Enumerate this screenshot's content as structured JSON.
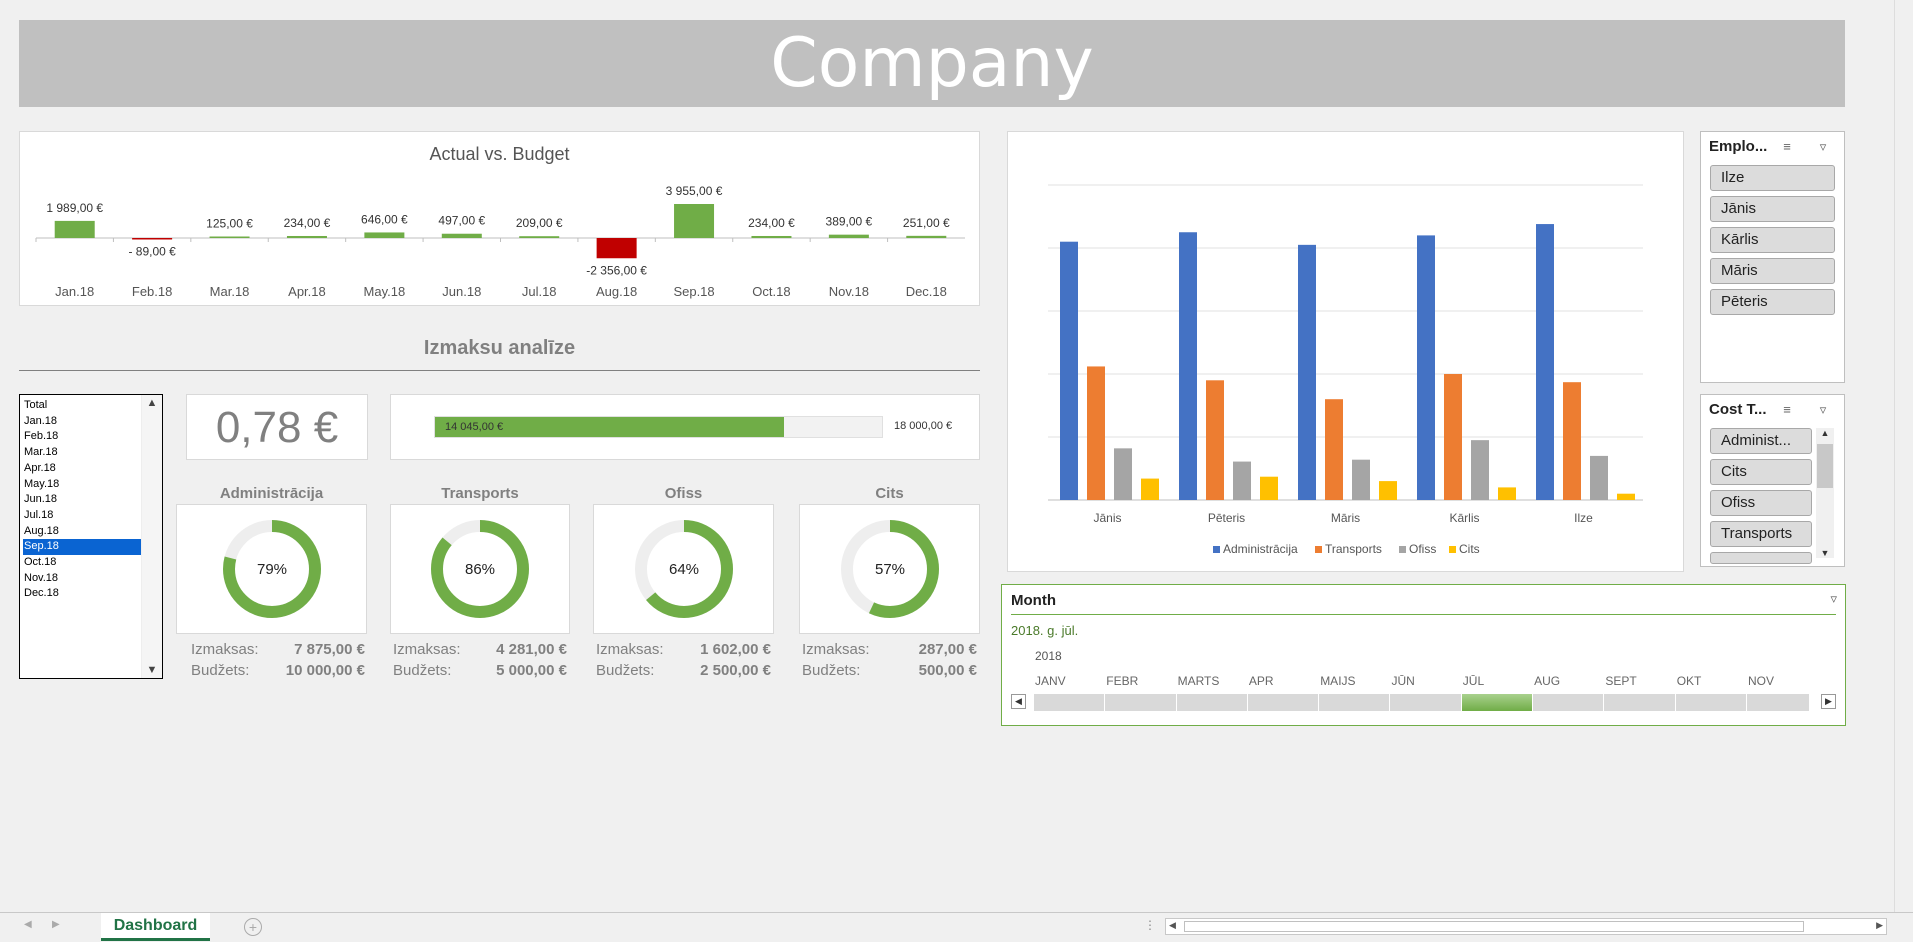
{
  "header": {
    "title": "Company"
  },
  "avb_chart": {
    "title": "Actual vs. Budget",
    "categories": [
      "Jan.18",
      "Feb.18",
      "Mar.18",
      "Apr.18",
      "May.18",
      "Jun.18",
      "Jul.18",
      "Aug.18",
      "Sep.18",
      "Oct.18",
      "Nov.18",
      "Dec.18"
    ],
    "values": [
      1989,
      -89,
      125,
      234,
      646,
      497,
      209,
      -2356,
      3955,
      234,
      389,
      251
    ],
    "labels": [
      "1 989,00 €",
      "- 89,00 €",
      "125,00 €",
      "234,00 €",
      "646,00 €",
      "497,00 €",
      "209,00 €",
      "-2 356,00 €",
      "3 955,00 €",
      "234,00 €",
      "389,00 €",
      "251,00 €"
    ],
    "colors": {
      "positive": "#70ad47",
      "negative": "#c00000"
    }
  },
  "analysis": {
    "title": "Izmaksu analīze",
    "month_list": [
      "Total",
      "Jan.18",
      "Feb.18",
      "Mar.18",
      "Apr.18",
      "May.18",
      "Jun.18",
      "Jul.18",
      "Aug.18",
      "Sep.18",
      "Oct.18",
      "Nov.18",
      "Dec.18"
    ],
    "selected_month": "Sep.18",
    "big_value": "0,78 €",
    "total_actual_label": "14 045,00 €",
    "total_budget_label": "18 000,00 €",
    "total_progress": 0.78,
    "categories": [
      {
        "name": "Administrācija",
        "percent_label": "79%",
        "percent": 0.79,
        "cost_label": "Izmaksas:",
        "cost": "7 875,00 €",
        "budget_label": "Budžets:",
        "budget": "10 000,00 €"
      },
      {
        "name": "Transports",
        "percent_label": "86%",
        "percent": 0.86,
        "cost_label": "Izmaksas:",
        "cost": "4 281,00 €",
        "budget_label": "Budžets:",
        "budget": "5 000,00 €"
      },
      {
        "name": "Ofiss",
        "percent_label": "64%",
        "percent": 0.64,
        "cost_label": "Izmaksas:",
        "cost": "1 602,00 €",
        "budget_label": "Budžets:",
        "budget": "2 500,00 €"
      },
      {
        "name": "Cits",
        "percent_label": "57%",
        "percent": 0.57,
        "cost_label": "Izmaksas:",
        "cost": "287,00 €",
        "budget_label": "Budžets:",
        "budget": "500,00 €"
      }
    ]
  },
  "chart_data": {
    "type": "bar",
    "categories": [
      "Jānis",
      "Pēteris",
      "Māris",
      "Kārlis",
      "Ilze"
    ],
    "ylim": [
      0,
      5
    ],
    "series": [
      {
        "name": "Administrācija",
        "color": "#4472c4",
        "values": [
          4.1,
          4.25,
          4.05,
          4.2,
          4.38
        ]
      },
      {
        "name": "Transports",
        "color": "#ed7d31",
        "values": [
          2.12,
          1.9,
          1.6,
          2.0,
          1.87
        ]
      },
      {
        "name": "Ofiss",
        "color": "#a5a5a5",
        "values": [
          0.82,
          0.61,
          0.64,
          0.95,
          0.7
        ]
      },
      {
        "name": "Cits",
        "color": "#ffc000",
        "values": [
          0.34,
          0.37,
          0.3,
          0.2,
          0.1
        ]
      }
    ],
    "legend_position": "bottom",
    "grid": true
  },
  "employee_slicer": {
    "header": "Emplo...",
    "items": [
      "Ilze",
      "Jānis",
      "Kārlis",
      "Māris",
      "Pēteris"
    ]
  },
  "cost_slicer": {
    "header": "Cost T...",
    "items": [
      "Administ...",
      "Cits",
      "Ofiss",
      "Transports"
    ]
  },
  "timeline": {
    "header": "Month",
    "selection": "2018. g. jūl.",
    "year": "2018",
    "months": [
      "JANV",
      "FEBR",
      "MARTS",
      "APR",
      "MAIJS",
      "JŪN",
      "JŪL",
      "AUG",
      "SEPT",
      "OKT",
      "NOV"
    ],
    "selected_index": 6
  },
  "sheet": {
    "tab": "Dashboard"
  }
}
